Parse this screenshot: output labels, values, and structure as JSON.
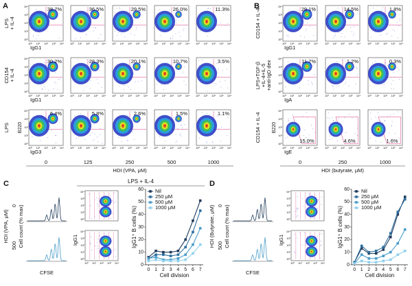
{
  "figure": {
    "flow_ticks": [
      "10⁰",
      "10¹",
      "10²",
      "10³",
      "10⁴"
    ],
    "panel_a": {
      "label": "A",
      "columns": [
        "0",
        "125",
        "250",
        "500",
        "1000"
      ],
      "xlabel": "HDI (VPA, μM)",
      "rows": [
        {
          "name": [
            "LPS",
            "+ IL-4"
          ],
          "x_axis": "IgG1",
          "percents": [
            "38.7%",
            "36.5%",
            "29.5%",
            "26.0%",
            "11.3%"
          ]
        },
        {
          "name": [
            "CD154",
            "+ IL-4"
          ],
          "x_axis": "IgG1",
          "percents": [
            "30.2%",
            "28.3%",
            "20.1%",
            "10.7%",
            "3.5%"
          ]
        },
        {
          "name": [
            "LPS"
          ],
          "y_axis": "B220",
          "x_axis": "IgG3",
          "percents": [
            "6.4%",
            "5.8%",
            "2.6%",
            "1.5%",
            "1.1%"
          ]
        }
      ]
    },
    "panel_b": {
      "label": "B",
      "columns": [
        "0",
        "250",
        "1000"
      ],
      "xlabel": "HDI (butyrate, μM)",
      "rows": [
        {
          "name": [
            "CD154 + IL-4"
          ],
          "x_axis": "IgG1",
          "percents": [
            "29.1%",
            "14.5%",
            "1.8%"
          ]
        },
        {
          "name": [
            "LPS+TGF-β",
            "+IL-4+IL-5",
            "+anti-IgD dex"
          ],
          "x_axis": "IgA",
          "percents": [
            "11.7%",
            "1.2%",
            "0.3%"
          ]
        },
        {
          "name": [
            "CD154 + IL-4"
          ],
          "y_axis": "B220",
          "x_axis": "IgE",
          "percents": [
            "15.0%",
            "4.6%",
            "1.6%"
          ]
        }
      ]
    },
    "panel_c": {
      "label": "C",
      "header": "LPS + IL-4",
      "treatment": "HDI (VPA, μM)",
      "doses": [
        "0",
        "500"
      ],
      "hist_ylabel": "Cell count (% max)",
      "hist_xlabel": "CFSE",
      "dot_ylabel": "IgG1"
    },
    "panel_d": {
      "label": "D",
      "treatment": "HDI (Butyrate, μM)",
      "doses": [
        "0",
        "500"
      ],
      "hist_ylabel": "Cell count (% max)",
      "hist_xlabel": "CFSE",
      "dot_ylabel": "IgG1"
    }
  },
  "chart_data": [
    {
      "type": "line",
      "xlabel": "Cell division",
      "ylabel": "IgG1⁺ B cells (%)",
      "x": [
        0,
        1,
        2,
        3,
        4,
        5,
        6,
        7
      ],
      "xlim": [
        -0.4,
        7.4
      ],
      "xticks": [
        0,
        1,
        2,
        3,
        4,
        5,
        6,
        7
      ],
      "ylim": [
        0,
        60
      ],
      "yticks": [
        0,
        10,
        20,
        30,
        40,
        50,
        60
      ],
      "series": [
        {
          "name": "Nil",
          "color": "#1f3a5a",
          "values": [
            6,
            11,
            10,
            10,
            11,
            20,
            35,
            51
          ]
        },
        {
          "name": "250 μM",
          "color": "#2e6f9e",
          "values": [
            5,
            8,
            8,
            7,
            8,
            14,
            26,
            43
          ]
        },
        {
          "name": "500 μM",
          "color": "#4a9cc9",
          "values": [
            5,
            6,
            4,
            4,
            5,
            8,
            16,
            29
          ]
        },
        {
          "name": "1000 μM",
          "color": "#8fd0ec",
          "values": [
            3,
            4,
            3,
            3,
            3,
            4,
            9,
            16
          ]
        }
      ]
    },
    {
      "type": "line",
      "xlabel": "Cell division",
      "ylabel": "IgG1⁺ B cells (%)",
      "x": [
        0,
        1,
        2,
        3,
        4,
        5,
        6,
        7
      ],
      "xlim": [
        -0.4,
        7.4
      ],
      "xticks": [
        0,
        1,
        2,
        3,
        4,
        5,
        6,
        7
      ],
      "ylim": [
        0,
        60
      ],
      "yticks": [
        0,
        10,
        20,
        30,
        40,
        50,
        60
      ],
      "series": [
        {
          "name": "Nil",
          "color": "#1f3a5a",
          "values": [
            2,
            13,
            9,
            9,
            12,
            22,
            40,
            54
          ]
        },
        {
          "name": "250 μM",
          "color": "#2e6f9e",
          "values": [
            2,
            15,
            10,
            11,
            14,
            25,
            42,
            52
          ]
        },
        {
          "name": "500 μM",
          "color": "#4a9cc9",
          "values": [
            1,
            8,
            5,
            5,
            7,
            10,
            17,
            28
          ]
        },
        {
          "name": "1000 μM",
          "color": "#8fd0ec",
          "values": [
            1,
            3,
            2,
            2,
            3,
            4,
            8,
            11
          ]
        }
      ]
    }
  ]
}
